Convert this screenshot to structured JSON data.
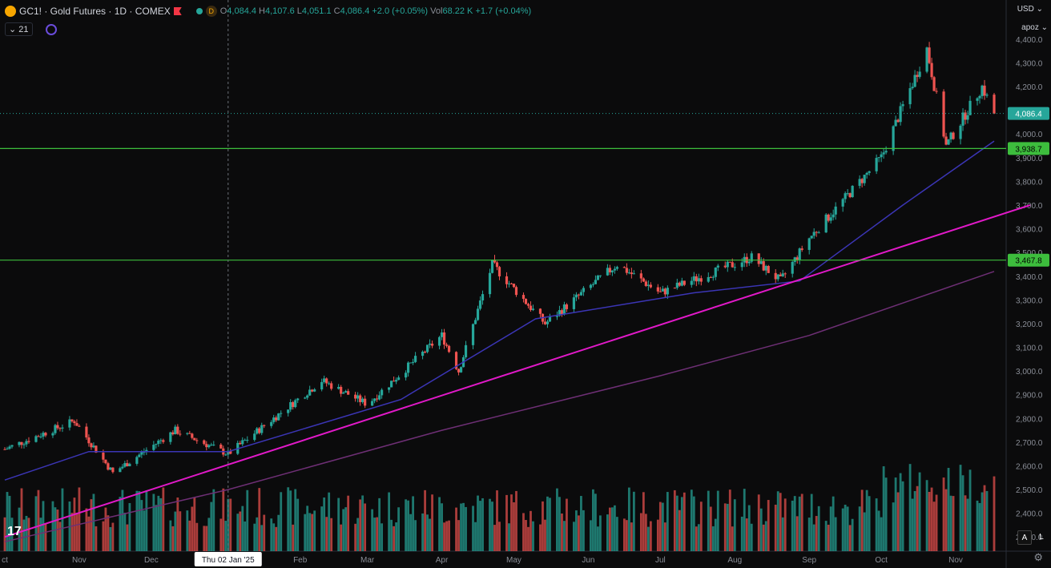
{
  "header": {
    "title": "GC1! · Gold Futures · 1D · COMEX",
    "dbadge": "D",
    "ohlc": {
      "o_label": "O",
      "o": "4,084.4",
      "h_label": "H",
      "h": "4,107.6",
      "l_label": "L",
      "l": "4,051.1",
      "c_label": "C",
      "c": "4,086.4",
      "change": "+2.0 (+0.05%)",
      "vol_label": "Vol",
      "vol": "68.22 K",
      "vol_change": "+1.7 (+0.04%)"
    }
  },
  "indicator": {
    "label": "21"
  },
  "right_panel": {
    "currency": "USD",
    "symbol": "apoz"
  },
  "crosshair_date": "Thu 02 Jan '25",
  "colors": {
    "up": "#26a69a",
    "down": "#ef5350",
    "ma_blue": "#3b35b5",
    "ma_purple": "#6e2f75",
    "trend": "#e119c8",
    "level": "#3dbd3d"
  },
  "buttons": {
    "auto": "A",
    "log": "L"
  },
  "chart_data": {
    "type": "candlestick",
    "title": "GC1! · Gold Futures · 1D · COMEX",
    "x_tick_labels": [
      "ct",
      "Nov",
      "Dec",
      "Feb",
      "Mar",
      "Apr",
      "May",
      "Jun",
      "Jul",
      "Aug",
      "Sep",
      "Oct",
      "Nov"
    ],
    "y_tick_labels": [
      "2,300.0",
      "2,400.0",
      "2,500.0",
      "2,600.0",
      "2,700.0",
      "2,800.0",
      "2,900.0",
      "3,000.0",
      "3,100.0",
      "3,200.0",
      "3,300.0",
      "3,400.0",
      "3,500.0",
      "3,600.0",
      "3,700.0",
      "3,800.0",
      "3,900.0",
      "4,000.0",
      "4,100.0",
      "4,200.0",
      "4,300.0",
      "4,400.0"
    ],
    "ylim": [
      2240,
      4430
    ],
    "last_price": "4,086.4",
    "horizontal_levels": [
      {
        "label": "3,938.7",
        "value": 3938.7
      },
      {
        "label": "3,467.8",
        "value": 3467.8
      }
    ],
    "key_points": [
      {
        "date": "2024-10-01",
        "close": 2670
      },
      {
        "date": "2024-10-30",
        "close": 2790
      },
      {
        "date": "2024-11-15",
        "close": 2570
      },
      {
        "date": "2024-12-11",
        "close": 2750
      },
      {
        "date": "2025-01-02",
        "close": 2650
      },
      {
        "date": "2025-02-10",
        "close": 2960
      },
      {
        "date": "2025-03-01",
        "close": 2860
      },
      {
        "date": "2025-04-01",
        "close": 3150
      },
      {
        "date": "2025-04-08",
        "close": 3000
      },
      {
        "date": "2025-04-22",
        "close": 3450
      },
      {
        "date": "2025-05-14",
        "close": 3200
      },
      {
        "date": "2025-06-13",
        "close": 3450
      },
      {
        "date": "2025-07-01",
        "close": 3330
      },
      {
        "date": "2025-08-08",
        "close": 3480
      },
      {
        "date": "2025-08-20",
        "close": 3380
      },
      {
        "date": "2025-09-01",
        "close": 3560
      },
      {
        "date": "2025-10-01",
        "close": 3900
      },
      {
        "date": "2025-10-20",
        "close": 4360
      },
      {
        "date": "2025-10-28",
        "close": 3950
      },
      {
        "date": "2025-11-12",
        "close": 4200
      },
      {
        "date": "2025-11-17",
        "close": 4086.4
      }
    ],
    "ma_blue_points": [
      {
        "date": "2024-10-01",
        "value": 2540
      },
      {
        "date": "2024-11-05",
        "value": 2660
      },
      {
        "date": "2025-01-02",
        "value": 2660
      },
      {
        "date": "2025-03-15",
        "value": 2880
      },
      {
        "date": "2025-05-10",
        "value": 3220
      },
      {
        "date": "2025-07-15",
        "value": 3330
      },
      {
        "date": "2025-08-28",
        "value": 3380
      },
      {
        "date": "2025-10-10",
        "value": 3700
      },
      {
        "date": "2025-11-17",
        "value": 3970
      }
    ],
    "ma_purple_points": [
      {
        "date": "2024-10-01",
        "value": 2280
      },
      {
        "date": "2025-01-02",
        "value": 2500
      },
      {
        "date": "2025-04-01",
        "value": 2750
      },
      {
        "date": "2025-07-01",
        "value": 2980
      },
      {
        "date": "2025-09-01",
        "value": 3150
      },
      {
        "date": "2025-11-17",
        "value": 3420
      }
    ],
    "trendline": [
      {
        "date": "2024-10-01",
        "value": 2300
      },
      {
        "date": "2025-12-02",
        "value": 3700
      }
    ]
  }
}
